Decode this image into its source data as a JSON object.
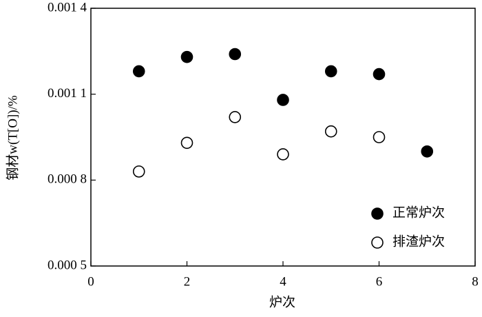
{
  "chart_data": {
    "type": "scatter",
    "xlabel": "炉次",
    "ylabel": "钢材w(T[O])/%",
    "xlim": [
      0,
      8
    ],
    "xticks": [
      0,
      2,
      4,
      6,
      8
    ],
    "ylim": [
      0.0005,
      0.0014
    ],
    "yticks": [
      {
        "value": 0.0005,
        "label": "0.000 5"
      },
      {
        "value": 0.0008,
        "label": "0.000 8"
      },
      {
        "value": 0.0011,
        "label": "0.001 1"
      },
      {
        "value": 0.0014,
        "label": "0.001 4"
      }
    ],
    "legend_position": "lower right",
    "series": [
      {
        "name": "正常炉次",
        "color": "#000000",
        "marker": "filled",
        "x": [
          1,
          2,
          3,
          4,
          5,
          6,
          7
        ],
        "values": [
          0.00118,
          0.00123,
          0.00124,
          0.00108,
          0.00118,
          0.00117,
          0.0009
        ]
      },
      {
        "name": "排渣炉次",
        "color": "#000000",
        "marker": "open",
        "x": [
          1,
          2,
          3,
          4,
          5,
          6
        ],
        "values": [
          0.00083,
          0.00093,
          0.00102,
          0.00089,
          0.00097,
          0.00095
        ]
      }
    ]
  }
}
